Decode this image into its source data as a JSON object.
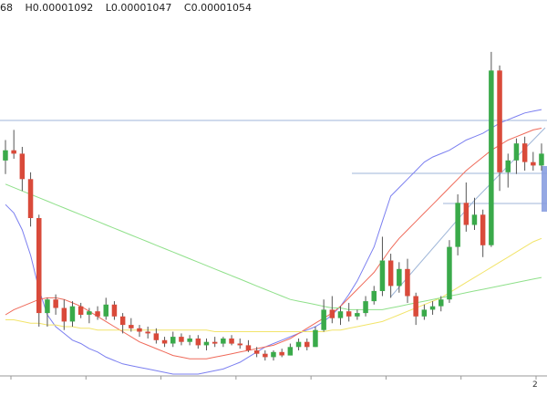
{
  "ohlc_readout": {
    "first": "68",
    "high": "H0.00001092",
    "low": "L0.00001047",
    "close": "C0.00001054"
  },
  "colors": {
    "bull": "#3aaa4a",
    "bear": "#d94a3a",
    "wick": "#555555",
    "ma_blue": "#7b7ff0",
    "ma_red": "#ef6a5a",
    "ma_yellow": "#f2e46a",
    "ma_green": "#8fe08a",
    "guide_line": "#9fb6d8",
    "zone_fill": "#8a9ee0",
    "axis": "#999999"
  },
  "chart_data": {
    "type": "candlestick",
    "title": "",
    "xlabel": "",
    "ylabel": "",
    "y_range": [
      9e-06,
      1.12e-05
    ],
    "grid": false,
    "x_tick_count": 8,
    "x_tick_label_partial": "2",
    "candles": [
      {
        "o": 1026,
        "h": 1038,
        "l": 1018,
        "c": 1032
      },
      {
        "o": 1032,
        "h": 1044,
        "l": 1027,
        "c": 1030
      },
      {
        "o": 1030,
        "h": 1034,
        "l": 1008,
        "c": 1015
      },
      {
        "o": 1015,
        "h": 1019,
        "l": 987,
        "c": 992
      },
      {
        "o": 992,
        "h": 994,
        "l": 928,
        "c": 936
      },
      {
        "o": 936,
        "h": 945,
        "l": 928,
        "c": 944
      },
      {
        "o": 944,
        "h": 947,
        "l": 935,
        "c": 939
      },
      {
        "o": 939,
        "h": 944,
        "l": 926,
        "c": 931
      },
      {
        "o": 931,
        "h": 943,
        "l": 928,
        "c": 940
      },
      {
        "o": 940,
        "h": 942,
        "l": 933,
        "c": 935
      },
      {
        "o": 935,
        "h": 939,
        "l": 930,
        "c": 937
      },
      {
        "o": 937,
        "h": 940,
        "l": 932,
        "c": 934
      },
      {
        "o": 934,
        "h": 945,
        "l": 932,
        "c": 941
      },
      {
        "o": 941,
        "h": 943,
        "l": 932,
        "c": 934
      },
      {
        "o": 934,
        "h": 936,
        "l": 924,
        "c": 929
      },
      {
        "o": 929,
        "h": 933,
        "l": 925,
        "c": 927
      },
      {
        "o": 927,
        "h": 929,
        "l": 922,
        "c": 925
      },
      {
        "o": 925,
        "h": 928,
        "l": 921,
        "c": 924
      },
      {
        "o": 924,
        "h": 927,
        "l": 918,
        "c": 920
      },
      {
        "o": 920,
        "h": 922,
        "l": 916,
        "c": 918
      },
      {
        "o": 918,
        "h": 925,
        "l": 916,
        "c": 922
      },
      {
        "o": 922,
        "h": 924,
        "l": 917,
        "c": 919
      },
      {
        "o": 919,
        "h": 923,
        "l": 917,
        "c": 921
      },
      {
        "o": 921,
        "h": 923,
        "l": 915,
        "c": 917
      },
      {
        "o": 917,
        "h": 921,
        "l": 914,
        "c": 919
      },
      {
        "o": 919,
        "h": 922,
        "l": 916,
        "c": 918
      },
      {
        "o": 918,
        "h": 922,
        "l": 916,
        "c": 921
      },
      {
        "o": 921,
        "h": 923,
        "l": 917,
        "c": 918
      },
      {
        "o": 918,
        "h": 921,
        "l": 915,
        "c": 917
      },
      {
        "o": 917,
        "h": 920,
        "l": 913,
        "c": 914
      },
      {
        "o": 914,
        "h": 916,
        "l": 910,
        "c": 912
      },
      {
        "o": 912,
        "h": 914,
        "l": 908,
        "c": 910
      },
      {
        "o": 910,
        "h": 914,
        "l": 908,
        "c": 913
      },
      {
        "o": 913,
        "h": 915,
        "l": 910,
        "c": 911
      },
      {
        "o": 911,
        "h": 918,
        "l": 911,
        "c": 916
      },
      {
        "o": 916,
        "h": 921,
        "l": 914,
        "c": 919
      },
      {
        "o": 919,
        "h": 921,
        "l": 914,
        "c": 916
      },
      {
        "o": 916,
        "h": 928,
        "l": 916,
        "c": 926
      },
      {
        "o": 926,
        "h": 944,
        "l": 925,
        "c": 938
      },
      {
        "o": 938,
        "h": 946,
        "l": 930,
        "c": 933
      },
      {
        "o": 933,
        "h": 940,
        "l": 929,
        "c": 937
      },
      {
        "o": 937,
        "h": 942,
        "l": 931,
        "c": 934
      },
      {
        "o": 934,
        "h": 938,
        "l": 932,
        "c": 936
      },
      {
        "o": 936,
        "h": 946,
        "l": 934,
        "c": 943
      },
      {
        "o": 943,
        "h": 952,
        "l": 941,
        "c": 949
      },
      {
        "o": 949,
        "h": 981,
        "l": 946,
        "c": 967
      },
      {
        "o": 967,
        "h": 971,
        "l": 945,
        "c": 952
      },
      {
        "o": 952,
        "h": 966,
        "l": 948,
        "c": 962
      },
      {
        "o": 962,
        "h": 968,
        "l": 942,
        "c": 946
      },
      {
        "o": 946,
        "h": 948,
        "l": 929,
        "c": 934
      },
      {
        "o": 934,
        "h": 941,
        "l": 932,
        "c": 938
      },
      {
        "o": 938,
        "h": 943,
        "l": 935,
        "c": 940
      },
      {
        "o": 940,
        "h": 946,
        "l": 937,
        "c": 944
      },
      {
        "o": 944,
        "h": 979,
        "l": 942,
        "c": 975
      },
      {
        "o": 975,
        "h": 1006,
        "l": 970,
        "c": 1001
      },
      {
        "o": 1001,
        "h": 1013,
        "l": 984,
        "c": 988
      },
      {
        "o": 988,
        "h": 1004,
        "l": 985,
        "c": 994
      },
      {
        "o": 994,
        "h": 997,
        "l": 969,
        "c": 976
      },
      {
        "o": 976,
        "h": 1090,
        "l": 975,
        "c": 1079
      },
      {
        "o": 1079,
        "h": 1082,
        "l": 1008,
        "c": 1019
      },
      {
        "o": 1019,
        "h": 1030,
        "l": 1010,
        "c": 1026
      },
      {
        "o": 1026,
        "h": 1039,
        "l": 1018,
        "c": 1036
      },
      {
        "o": 1036,
        "h": 1040,
        "l": 1020,
        "c": 1025
      },
      {
        "o": 1025,
        "h": 1031,
        "l": 1020,
        "c": 1023
      },
      {
        "o": 1023,
        "h": 1036,
        "l": 1020,
        "c": 1030
      }
    ],
    "moving_averages": [
      {
        "color_key": "ma_blue",
        "values": [
          1000,
          995,
          985,
          970,
          950,
          935,
          928,
          924,
          920,
          918,
          915,
          913,
          910,
          908,
          906,
          905,
          904,
          903,
          902,
          901,
          900,
          900,
          900,
          900,
          901,
          902,
          903,
          905,
          907,
          910,
          913,
          916,
          918,
          920,
          922,
          924,
          926,
          928,
          931,
          935,
          940,
          947,
          955,
          965,
          975,
          990,
          1005,
          1010,
          1015,
          1020,
          1025,
          1028,
          1030,
          1032,
          1035,
          1038,
          1040,
          1042,
          1045,
          1048,
          1050,
          1052,
          1054,
          1055,
          1056
        ]
      },
      {
        "color_key": "ma_red",
        "values": [
          935,
          938,
          940,
          942,
          944,
          945,
          945,
          944,
          942,
          940,
          937,
          934,
          931,
          928,
          925,
          922,
          919,
          917,
          915,
          913,
          911,
          910,
          909,
          909,
          909,
          910,
          911,
          912,
          913,
          914,
          915,
          916,
          917,
          919,
          921,
          924,
          927,
          930,
          933,
          936,
          940,
          945,
          950,
          955,
          960,
          967,
          974,
          980,
          985,
          990,
          995,
          1000,
          1005,
          1010,
          1015,
          1020,
          1024,
          1028,
          1032,
          1035,
          1038,
          1040,
          1042,
          1044,
          1045
        ]
      },
      {
        "color_key": "ma_yellow",
        "values": [
          932,
          932,
          931,
          930,
          930,
          929,
          929,
          928,
          928,
          927,
          927,
          926,
          926,
          926,
          926,
          926,
          926,
          926,
          926,
          926,
          926,
          926,
          926,
          926,
          926,
          925,
          925,
          925,
          925,
          925,
          925,
          925,
          925,
          925,
          925,
          925,
          925,
          925,
          925,
          926,
          926,
          927,
          928,
          929,
          930,
          931,
          933,
          935,
          937,
          939,
          941,
          943,
          945,
          948,
          951,
          954,
          957,
          960,
          963,
          966,
          969,
          972,
          975,
          978,
          980
        ]
      },
      {
        "color_key": "ma_green",
        "values": [
          1012,
          1010,
          1008,
          1006,
          1004,
          1002,
          1000,
          998,
          996,
          994,
          992,
          990,
          988,
          986,
          984,
          982,
          980,
          978,
          976,
          974,
          972,
          970,
          968,
          966,
          964,
          962,
          960,
          958,
          956,
          954,
          952,
          950,
          948,
          946,
          944,
          943,
          942,
          941,
          940,
          939,
          939,
          938,
          938,
          938,
          938,
          938,
          939,
          940,
          941,
          942,
          943,
          944,
          945,
          946,
          947,
          948,
          949,
          950,
          951,
          952,
          953,
          954,
          955,
          956,
          957
        ]
      }
    ]
  }
}
